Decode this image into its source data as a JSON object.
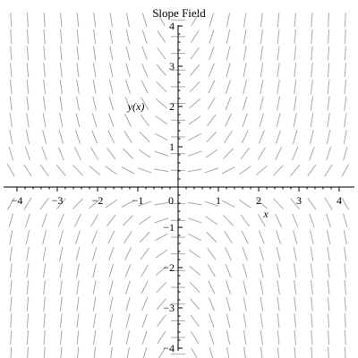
{
  "chart_data": {
    "type": "slope_field",
    "title": "Slope Field",
    "xlabel": "x",
    "ylabel": "y(x)",
    "xlim": [
      -4.2,
      4.2
    ],
    "ylim": [
      -4.2,
      4.2
    ],
    "xticks": [
      -4,
      -3,
      -2,
      -1,
      0,
      1,
      2,
      3,
      4
    ],
    "yticks": [
      -4,
      -3,
      -2,
      -1,
      1,
      2,
      3,
      4
    ],
    "xtick_labels": [
      "−4",
      "−3",
      "−2",
      "−1",
      "0",
      "1",
      "2",
      "3",
      "4"
    ],
    "ytick_labels": [
      "−4",
      "−3",
      "−2",
      "−1",
      "1",
      "2",
      "3",
      "4"
    ],
    "grid_x_start": -4.15,
    "grid_x_step": 0.415,
    "grid_x_count": 21,
    "grid_y_start": -4.15,
    "grid_y_step": 0.415,
    "grid_y_count": 21,
    "slope_rule": "dy/dx = x*y",
    "segment_color": "#a8a8a8",
    "axis_color": "#000000"
  }
}
